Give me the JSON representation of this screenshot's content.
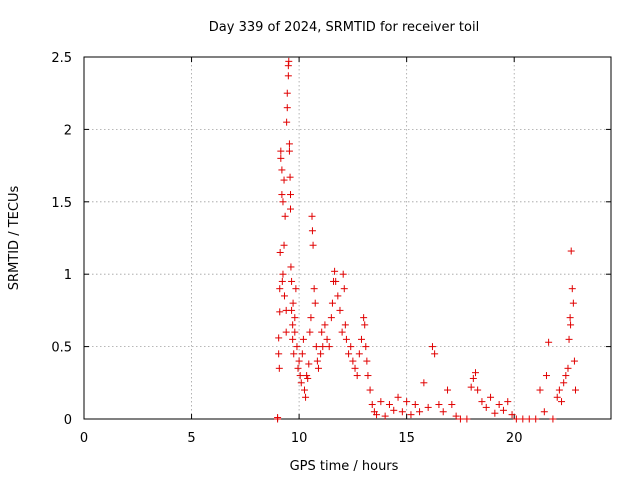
{
  "chart_data": {
    "type": "scatter",
    "title": "Day 339 of 2024, SRMTID for receiver toil",
    "xlabel": "GPS time / hours",
    "ylabel": "SRMTID / TECUs",
    "xlim": [
      0,
      24.5
    ],
    "ylim": [
      0,
      2.5
    ],
    "xticks": [
      0,
      5,
      10,
      15,
      20
    ],
    "xtick_labels": [
      "0",
      "5",
      "10",
      "15",
      "20"
    ],
    "yticks": [
      0,
      0.5,
      1,
      1.5,
      2,
      2.5
    ],
    "ytick_labels": [
      "0",
      "0.5",
      "1",
      "1.5",
      "2",
      "2.5"
    ],
    "grid": true,
    "marker": "+",
    "color": "#e00000",
    "series": [
      {
        "name": "SRMTID",
        "points": [
          [
            9.0,
            0.0
          ],
          [
            9.0,
            0.01
          ],
          [
            9.05,
            0.45
          ],
          [
            9.05,
            0.56
          ],
          [
            9.08,
            0.35
          ],
          [
            9.1,
            0.74
          ],
          [
            9.1,
            0.9
          ],
          [
            9.12,
            1.15
          ],
          [
            9.15,
            1.8
          ],
          [
            9.15,
            1.85
          ],
          [
            9.2,
            1.72
          ],
          [
            9.2,
            1.55
          ],
          [
            9.22,
            0.95
          ],
          [
            9.25,
            1.0
          ],
          [
            9.25,
            1.5
          ],
          [
            9.3,
            1.65
          ],
          [
            9.3,
            1.2
          ],
          [
            9.32,
            0.85
          ],
          [
            9.35,
            1.4
          ],
          [
            9.4,
            0.6
          ],
          [
            9.4,
            0.75
          ],
          [
            9.42,
            2.05
          ],
          [
            9.45,
            2.15
          ],
          [
            9.45,
            2.25
          ],
          [
            9.5,
            2.37
          ],
          [
            9.5,
            2.44
          ],
          [
            9.52,
            2.47
          ],
          [
            9.55,
            1.85
          ],
          [
            9.55,
            1.9
          ],
          [
            9.58,
            1.67
          ],
          [
            9.6,
            1.55
          ],
          [
            9.6,
            1.45
          ],
          [
            9.62,
            1.05
          ],
          [
            9.65,
            0.95
          ],
          [
            9.65,
            0.75
          ],
          [
            9.7,
            0.55
          ],
          [
            9.7,
            0.65
          ],
          [
            9.72,
            0.8
          ],
          [
            9.75,
            0.45
          ],
          [
            9.8,
            0.6
          ],
          [
            9.8,
            0.7
          ],
          [
            9.85,
            0.9
          ],
          [
            9.9,
            0.5
          ],
          [
            9.95,
            0.35
          ],
          [
            10.0,
            0.4
          ],
          [
            10.05,
            0.3
          ],
          [
            10.1,
            0.25
          ],
          [
            10.15,
            0.45
          ],
          [
            10.2,
            0.55
          ],
          [
            10.25,
            0.2
          ],
          [
            10.3,
            0.15
          ],
          [
            10.35,
            0.3
          ],
          [
            10.4,
            0.28
          ],
          [
            10.45,
            0.38
          ],
          [
            10.5,
            0.6
          ],
          [
            10.55,
            0.7
          ],
          [
            10.6,
            1.4
          ],
          [
            10.62,
            1.3
          ],
          [
            10.65,
            1.2
          ],
          [
            10.7,
            0.9
          ],
          [
            10.75,
            0.8
          ],
          [
            10.8,
            0.5
          ],
          [
            10.85,
            0.4
          ],
          [
            10.9,
            0.35
          ],
          [
            11.0,
            0.45
          ],
          [
            11.05,
            0.6
          ],
          [
            11.1,
            0.5
          ],
          [
            11.2,
            0.65
          ],
          [
            11.3,
            0.55
          ],
          [
            11.4,
            0.5
          ],
          [
            11.5,
            0.7
          ],
          [
            11.55,
            0.8
          ],
          [
            11.6,
            0.95
          ],
          [
            11.65,
            1.02
          ],
          [
            11.7,
            0.95
          ],
          [
            11.8,
            0.85
          ],
          [
            11.9,
            0.75
          ],
          [
            12.0,
            0.6
          ],
          [
            12.05,
            1.0
          ],
          [
            12.1,
            0.9
          ],
          [
            12.15,
            0.65
          ],
          [
            12.2,
            0.55
          ],
          [
            12.3,
            0.45
          ],
          [
            12.4,
            0.5
          ],
          [
            12.5,
            0.4
          ],
          [
            12.6,
            0.35
          ],
          [
            12.7,
            0.3
          ],
          [
            12.8,
            0.45
          ],
          [
            12.9,
            0.55
          ],
          [
            13.0,
            0.7
          ],
          [
            13.05,
            0.65
          ],
          [
            13.1,
            0.5
          ],
          [
            13.15,
            0.4
          ],
          [
            13.2,
            0.3
          ],
          [
            13.3,
            0.2
          ],
          [
            13.4,
            0.1
          ],
          [
            13.5,
            0.05
          ],
          [
            13.6,
            0.03
          ],
          [
            13.8,
            0.12
          ],
          [
            14.0,
            0.02
          ],
          [
            14.2,
            0.1
          ],
          [
            14.4,
            0.06
          ],
          [
            14.6,
            0.15
          ],
          [
            14.8,
            0.05
          ],
          [
            15.0,
            0.12
          ],
          [
            15.2,
            0.03
          ],
          [
            15.4,
            0.1
          ],
          [
            15.6,
            0.05
          ],
          [
            15.8,
            0.25
          ],
          [
            16.0,
            0.08
          ],
          [
            16.2,
            0.5
          ],
          [
            16.3,
            0.45
          ],
          [
            16.5,
            0.1
          ],
          [
            16.7,
            0.05
          ],
          [
            16.9,
            0.2
          ],
          [
            17.1,
            0.1
          ],
          [
            17.3,
            0.02
          ],
          [
            17.5,
            0.0
          ],
          [
            17.8,
            0.0
          ],
          [
            18.0,
            0.22
          ],
          [
            18.1,
            0.28
          ],
          [
            18.2,
            0.32
          ],
          [
            18.3,
            0.2
          ],
          [
            18.5,
            0.12
          ],
          [
            18.7,
            0.08
          ],
          [
            18.9,
            0.15
          ],
          [
            19.1,
            0.04
          ],
          [
            19.3,
            0.1
          ],
          [
            19.5,
            0.06
          ],
          [
            19.7,
            0.12
          ],
          [
            19.9,
            0.03
          ],
          [
            20.1,
            0.0
          ],
          [
            20.4,
            0.0
          ],
          [
            20.7,
            0.0
          ],
          [
            21.0,
            0.0
          ],
          [
            21.2,
            0.2
          ],
          [
            21.4,
            0.05
          ],
          [
            21.5,
            0.3
          ],
          [
            21.6,
            0.53
          ],
          [
            21.8,
            0.0
          ],
          [
            22.0,
            0.15
          ],
          [
            22.1,
            0.2
          ],
          [
            22.2,
            0.12
          ],
          [
            22.3,
            0.25
          ],
          [
            22.4,
            0.3
          ],
          [
            22.5,
            0.35
          ],
          [
            22.55,
            0.55
          ],
          [
            22.6,
            0.7
          ],
          [
            22.62,
            0.65
          ],
          [
            22.65,
            1.16
          ],
          [
            22.7,
            0.9
          ],
          [
            22.75,
            0.8
          ],
          [
            22.8,
            0.4
          ],
          [
            22.85,
            0.2
          ]
        ]
      }
    ]
  }
}
